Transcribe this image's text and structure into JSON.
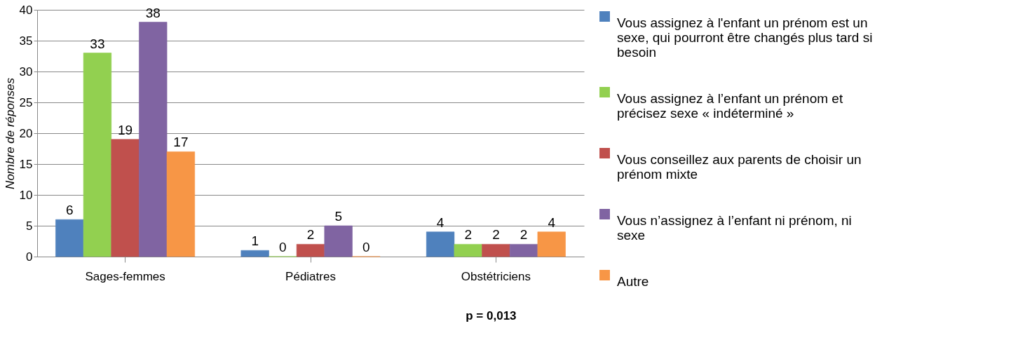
{
  "chart_data": {
    "type": "bar",
    "ylabel": "Nombre de réponses",
    "categories": [
      "Sages-femmes",
      "Pédiatres",
      "Obstétriciens"
    ],
    "series": [
      {
        "name": "Vous assignez à l'enfant un prénom est un sexe, qui pourront être changés plus tard si besoin",
        "color": "#4f81bd",
        "values": [
          6,
          1,
          4
        ]
      },
      {
        "name": "Vous assignez à l’enfant un prénom et précisez sexe « indéterminé »",
        "color": "#92d050",
        "values": [
          33,
          0,
          2
        ]
      },
      {
        "name": "Vous conseillez aux parents de choisir un prénom mixte",
        "color": "#c0504d",
        "values": [
          19,
          2,
          2
        ]
      },
      {
        "name": "Vous n’assignez à l’enfant ni prénom, ni sexe",
        "color": "#8064a2",
        "values": [
          38,
          5,
          2
        ]
      },
      {
        "name": "Autre",
        "color": "#f79646",
        "values": [
          17,
          0,
          4
        ]
      }
    ],
    "ylim": [
      0,
      40
    ],
    "yticks": [
      0,
      5,
      10,
      15,
      20,
      25,
      30,
      35,
      40
    ],
    "grid": "y",
    "legend": "right",
    "data_labels": true,
    "annotations": [
      "p = 0,013"
    ]
  }
}
